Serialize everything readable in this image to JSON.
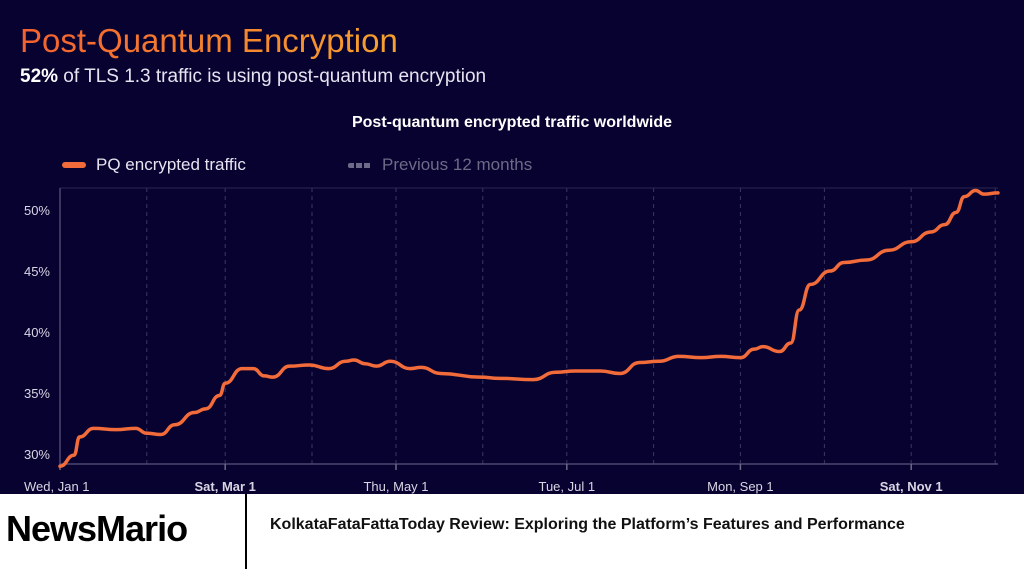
{
  "header": {
    "title": "Post-Quantum Encryption",
    "subtitle_value": "52%",
    "subtitle_text": " of TLS 1.3 traffic is using post-quantum encryption"
  },
  "chart_data": {
    "type": "line",
    "title": "Post-quantum encrypted traffic worldwide",
    "xlabel": "",
    "ylabel": "",
    "ylim": [
      29,
      52
    ],
    "yticks": [
      "30%",
      "35%",
      "40%",
      "45%",
      "50%"
    ],
    "ytick_values": [
      30,
      35,
      40,
      45,
      50
    ],
    "xticks": [
      "Wed, Jan 1",
      "Sat, Mar 1",
      "Thu, May 1",
      "Tue, Jul 1",
      "Mon, Sep 1",
      "Sat, Nov 1"
    ],
    "xtick_dates": [
      "01-01",
      "03-01",
      "05-01",
      "07-01",
      "09-01",
      "11-01"
    ],
    "xtick_bold": [
      false,
      true,
      false,
      false,
      false,
      true
    ],
    "xlim": [
      "01-01",
      "12-02"
    ],
    "grid": "vertical dashed monthly",
    "legend_position": "top-left",
    "legend": [
      {
        "name": "PQ encrypted traffic",
        "style": "solid",
        "color": "#f26b3a"
      },
      {
        "name": "Previous 12 months",
        "style": "dashed",
        "color": "#6c6a87"
      }
    ],
    "series": [
      {
        "name": "PQ encrypted traffic",
        "color": "#f26b3a",
        "x": [
          "01-01",
          "01-06",
          "01-08",
          "01-13",
          "01-21",
          "01-28",
          "02-01",
          "02-06",
          "02-11",
          "02-18",
          "02-22",
          "02-27",
          "03-01",
          "03-07",
          "03-11",
          "03-15",
          "03-18",
          "03-24",
          "03-31",
          "04-07",
          "04-13",
          "04-16",
          "04-20",
          "04-24",
          "04-29",
          "05-06",
          "05-10",
          "05-17",
          "05-31",
          "06-07",
          "06-19",
          "06-27",
          "07-04",
          "07-13",
          "07-20",
          "07-27",
          "08-03",
          "08-10",
          "08-18",
          "08-25",
          "09-01",
          "09-06",
          "09-09",
          "09-15",
          "09-19",
          "09-22",
          "09-26",
          "10-03",
          "10-08",
          "10-16",
          "10-24",
          "11-01",
          "11-08",
          "11-13",
          "11-17",
          "11-20",
          "11-24",
          "11-27",
          "12-02"
        ],
        "y": [
          29.0,
          29.9,
          31.4,
          32.1,
          32.0,
          32.1,
          31.7,
          31.6,
          32.4,
          33.4,
          33.7,
          34.8,
          35.8,
          37.0,
          37.0,
          36.4,
          36.3,
          37.2,
          37.3,
          37.0,
          37.6,
          37.7,
          37.4,
          37.2,
          37.6,
          37.0,
          37.1,
          36.6,
          36.3,
          36.2,
          36.1,
          36.7,
          36.8,
          36.8,
          36.6,
          37.5,
          37.6,
          38.0,
          37.9,
          38.0,
          37.9,
          38.6,
          38.8,
          38.4,
          39.1,
          41.8,
          43.9,
          45.0,
          45.7,
          45.9,
          46.7,
          47.4,
          48.2,
          48.8,
          49.8,
          51.1,
          51.6,
          51.3,
          51.4
        ]
      }
    ]
  },
  "footer": {
    "logo": "NewsMario",
    "headline": "KolkataFataFattaToday Review: Exploring the Platform’s Features and Performance"
  }
}
